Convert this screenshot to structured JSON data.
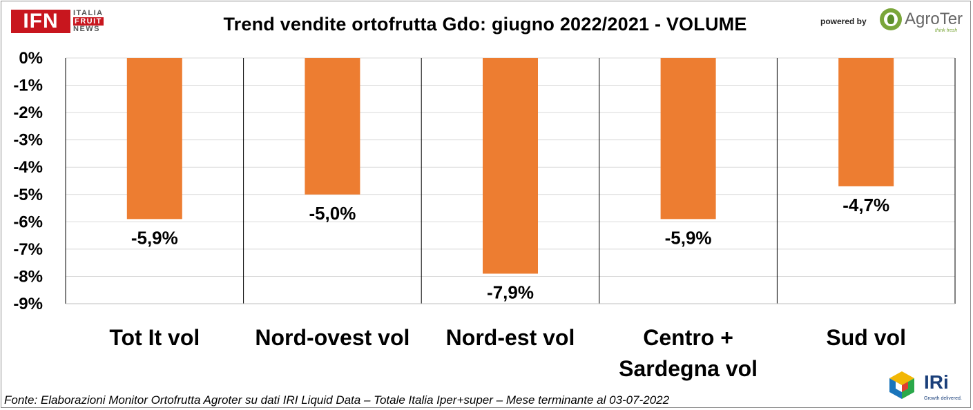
{
  "title": "Trend vendite ortofrutta Gdo: giugno 2022/2021 - VOLUME",
  "logos": {
    "ifn": {
      "main": "IFN",
      "line1": "ITALIA",
      "line2": "FRUIT",
      "line3": "NEWS"
    },
    "powered_by": "powered by",
    "agroter": {
      "name": "AgroTer",
      "tagline": "think fresh"
    },
    "iri": {
      "name": "IRi",
      "tagline": "Growth delivered."
    }
  },
  "footer": "Fonte: Elaborazioni Monitor Ortofrutta Agroter su dati IRI Liquid Data – Totale Italia Iper+super – Mese terminante al 03-07-2022",
  "chart_data": {
    "type": "bar",
    "categories": [
      [
        "Tot It  vol"
      ],
      [
        "Nord-ovest vol"
      ],
      [
        "Nord-est vol"
      ],
      [
        "Centro +",
        "Sardegna vol"
      ],
      [
        "Sud vol"
      ]
    ],
    "values": [
      -5.9,
      -5.0,
      -7.9,
      -5.9,
      -4.7
    ],
    "data_labels": [
      "-5,9%",
      "-5,0%",
      "-7,9%",
      "-5,9%",
      "-4,7%"
    ],
    "ylim": [
      -9,
      0
    ],
    "yticks": [
      0,
      -1,
      -2,
      -3,
      -4,
      -5,
      -6,
      -7,
      -8,
      -9
    ],
    "ytick_labels": [
      "0%",
      "-1%",
      "-2%",
      "-3%",
      "-4%",
      "-5%",
      "-6%",
      "-7%",
      "-8%",
      "-9%"
    ],
    "bar_color": "#ed7d31",
    "grid": true
  }
}
